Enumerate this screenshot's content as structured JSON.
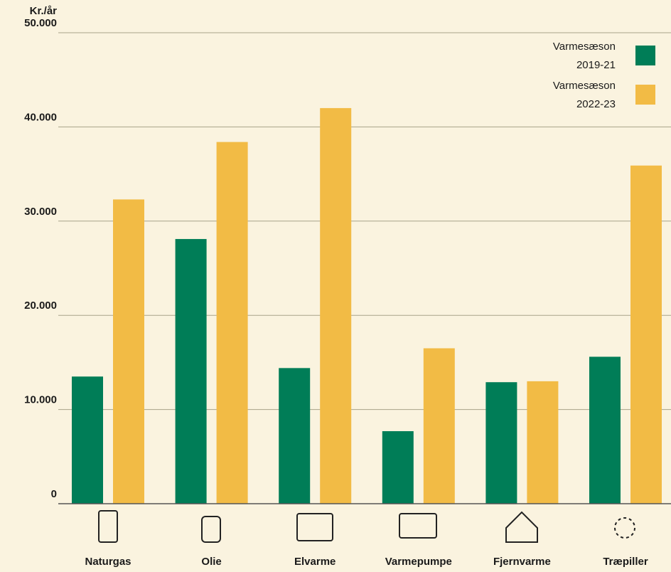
{
  "chart_data": {
    "type": "bar",
    "y_label": "Kr./år",
    "categories": [
      "Naturgas",
      "Olie",
      "Elvarme",
      "Varmepumpe",
      "Fjernvarme",
      "Træpiller"
    ],
    "series": [
      {
        "name": "Varmesæson 2019-21",
        "color": "#007d57",
        "values": [
          13500,
          28100,
          14400,
          7700,
          12900,
          15600
        ]
      },
      {
        "name": "Varmesæson 2022-23",
        "color": "#f2bb45",
        "values": [
          32300,
          38400,
          42000,
          16500,
          13000,
          35900
        ]
      }
    ],
    "ylim": [
      0,
      50000
    ],
    "yticks": [
      0,
      {
        "value": 10000,
        "label": "10.000"
      },
      {
        "value": 20000,
        "label": "20.000"
      },
      {
        "value": 30000,
        "label": "30.000"
      },
      {
        "value": 40000,
        "label": "40.000"
      },
      {
        "value": 50000,
        "label": "50.000"
      }
    ],
    "grid": true,
    "legend": "top-right"
  }
}
